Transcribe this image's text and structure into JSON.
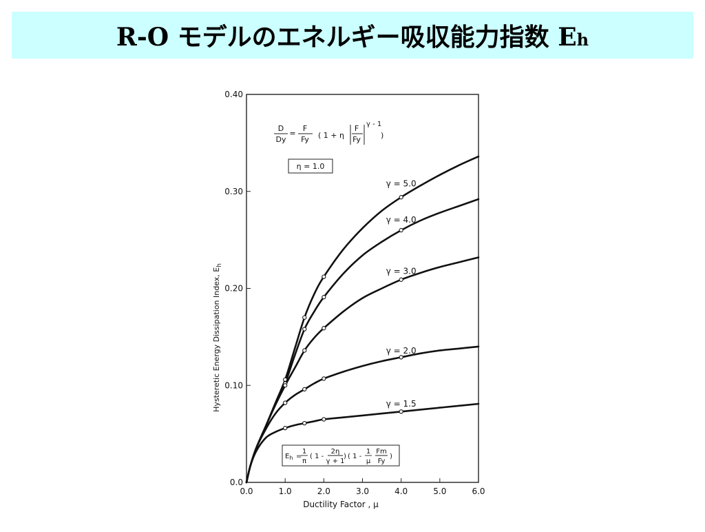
{
  "slide": {
    "title_main": "R-O モデルのエネルギー吸収能力指数 E",
    "title_sub": "h"
  },
  "chart_data": {
    "type": "line",
    "xlabel": "Ductility Factor , μ",
    "ylabel_main": "Hysteretic Energy Dissipation Index, E",
    "ylabel_sub": "h",
    "xlim": [
      0,
      6
    ],
    "ylim": [
      0,
      0.4
    ],
    "x_ticks": [
      "0.0",
      "1.0",
      "2.0",
      "3.0",
      "4.0",
      "5.0",
      "6.0"
    ],
    "y_ticks": [
      "0.0",
      "0.10",
      "0.20",
      "0.30",
      "0.40"
    ],
    "grid": false,
    "formula_top": {
      "lhs_num": "D",
      "lhs_den": "Dy",
      "eq": "=",
      "rhs_num": "F",
      "rhs_den": "Fy",
      "rest_a": "( 1 + η",
      "abs_num": "F",
      "abs_den": "Fy",
      "exponent": "γ - 1",
      "rest_b": ")"
    },
    "eta_box": "η = 1.0",
    "formula_bottom": {
      "lhs": "E",
      "lhs_sub": "h",
      "eq": "=",
      "f1_num": "1",
      "f1_den": "π",
      "p1a": "( 1 -",
      "f2_num": "2η",
      "f2_den": "γ + 1",
      "p1b": ")",
      "p2a": "( 1 -",
      "f3_num": "1",
      "f3_den": "μ",
      "f4_num": "Fm",
      "f4_den": "Fy",
      "p2b": ")"
    },
    "series": [
      {
        "name": "γ = 5.0",
        "x": [
          0,
          0.1,
          0.25,
          0.5,
          0.75,
          1.0,
          1.25,
          1.5,
          1.75,
          2.0,
          2.5,
          3.0,
          3.5,
          4.0,
          4.5,
          5.0,
          5.5,
          6.0
        ],
        "y": [
          0,
          0.017,
          0.035,
          0.058,
          0.082,
          0.106,
          0.138,
          0.17,
          0.194,
          0.212,
          0.24,
          0.262,
          0.28,
          0.294,
          0.306,
          0.317,
          0.327,
          0.336
        ],
        "markers": [
          1.0,
          1.5,
          2.0,
          4.0
        ]
      },
      {
        "name": "γ = 4.0",
        "x": [
          0,
          0.1,
          0.25,
          0.5,
          0.75,
          1.0,
          1.25,
          1.5,
          1.75,
          2.0,
          2.5,
          3.0,
          3.5,
          4.0,
          4.5,
          5.0,
          5.5,
          6.0
        ],
        "y": [
          0,
          0.017,
          0.035,
          0.058,
          0.081,
          0.102,
          0.131,
          0.158,
          0.176,
          0.191,
          0.215,
          0.234,
          0.248,
          0.26,
          0.27,
          0.278,
          0.285,
          0.292
        ],
        "markers": [
          1.0,
          1.5,
          2.0,
          4.0
        ]
      },
      {
        "name": "γ = 3.0",
        "x": [
          0,
          0.1,
          0.25,
          0.5,
          0.75,
          1.0,
          1.25,
          1.5,
          1.75,
          2.0,
          2.5,
          3.0,
          3.5,
          4.0,
          4.5,
          5.0,
          5.5,
          6.0
        ],
        "y": [
          0,
          0.017,
          0.035,
          0.058,
          0.08,
          0.1,
          0.118,
          0.136,
          0.149,
          0.159,
          0.176,
          0.19,
          0.2,
          0.209,
          0.216,
          0.222,
          0.227,
          0.232
        ],
        "markers": [
          1.0,
          1.5,
          2.0,
          4.0
        ]
      },
      {
        "name": "γ = 2.0",
        "x": [
          0,
          0.1,
          0.25,
          0.5,
          0.75,
          1.0,
          1.25,
          1.5,
          1.75,
          2.0,
          2.5,
          3.0,
          3.5,
          4.0,
          4.5,
          5.0,
          5.5,
          6.0
        ],
        "y": [
          0,
          0.017,
          0.035,
          0.055,
          0.071,
          0.082,
          0.09,
          0.096,
          0.102,
          0.107,
          0.114,
          0.12,
          0.125,
          0.129,
          0.133,
          0.136,
          0.138,
          0.14
        ],
        "markers": [
          1.0,
          1.5,
          2.0,
          4.0
        ]
      },
      {
        "name": "γ = 1.5",
        "x": [
          0,
          0.1,
          0.25,
          0.5,
          0.75,
          1.0,
          1.25,
          1.5,
          1.75,
          2.0,
          2.5,
          3.0,
          3.5,
          4.0,
          4.5,
          5.0,
          5.5,
          6.0
        ],
        "y": [
          0,
          0.017,
          0.032,
          0.046,
          0.052,
          0.056,
          0.059,
          0.061,
          0.063,
          0.065,
          0.067,
          0.069,
          0.071,
          0.073,
          0.075,
          0.077,
          0.079,
          0.081
        ],
        "markers": [
          1.0,
          1.5,
          2.0,
          4.0
        ]
      }
    ]
  }
}
